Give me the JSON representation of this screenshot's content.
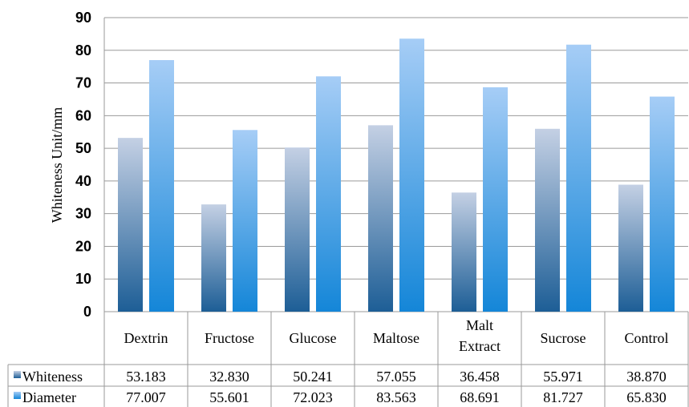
{
  "chart_data": {
    "type": "bar",
    "ylabel": "Whiteness Unit/mm",
    "ylim": [
      0,
      90
    ],
    "yticks": [
      "0",
      "10",
      "20",
      "30",
      "40",
      "50",
      "60",
      "70",
      "80",
      "90"
    ],
    "grid": true,
    "categories": [
      "Dextrin",
      "Fructose",
      "Glucose",
      "Maltose",
      "Malt Extract",
      "Sucrose",
      "Control"
    ],
    "category_lines": [
      [
        "Dextrin"
      ],
      [
        "Fructose"
      ],
      [
        "Glucose"
      ],
      [
        "Maltose"
      ],
      [
        "Malt",
        "Extract"
      ],
      [
        "Sucrose"
      ],
      [
        "Control"
      ]
    ],
    "series": [
      {
        "name": "Whiteness",
        "values": [
          53.183,
          32.83,
          50.241,
          57.055,
          36.458,
          55.971,
          38.87
        ],
        "labels": [
          "53.183",
          "32.830",
          "50.241",
          "57.055",
          "36.458",
          "55.971",
          "38.870"
        ],
        "color_top": "#c4d0e4",
        "color_bottom": "#1d5e96"
      },
      {
        "name": "Diameter",
        "values": [
          77.007,
          55.601,
          72.023,
          83.563,
          68.691,
          81.727,
          65.83
        ],
        "labels": [
          "77.007",
          "55.601",
          "72.023",
          "83.563",
          "68.691",
          "81.727",
          "65.830"
        ],
        "color_top": "#a6cdf6",
        "color_bottom": "#1486d8"
      }
    ],
    "legend": "data-table"
  }
}
